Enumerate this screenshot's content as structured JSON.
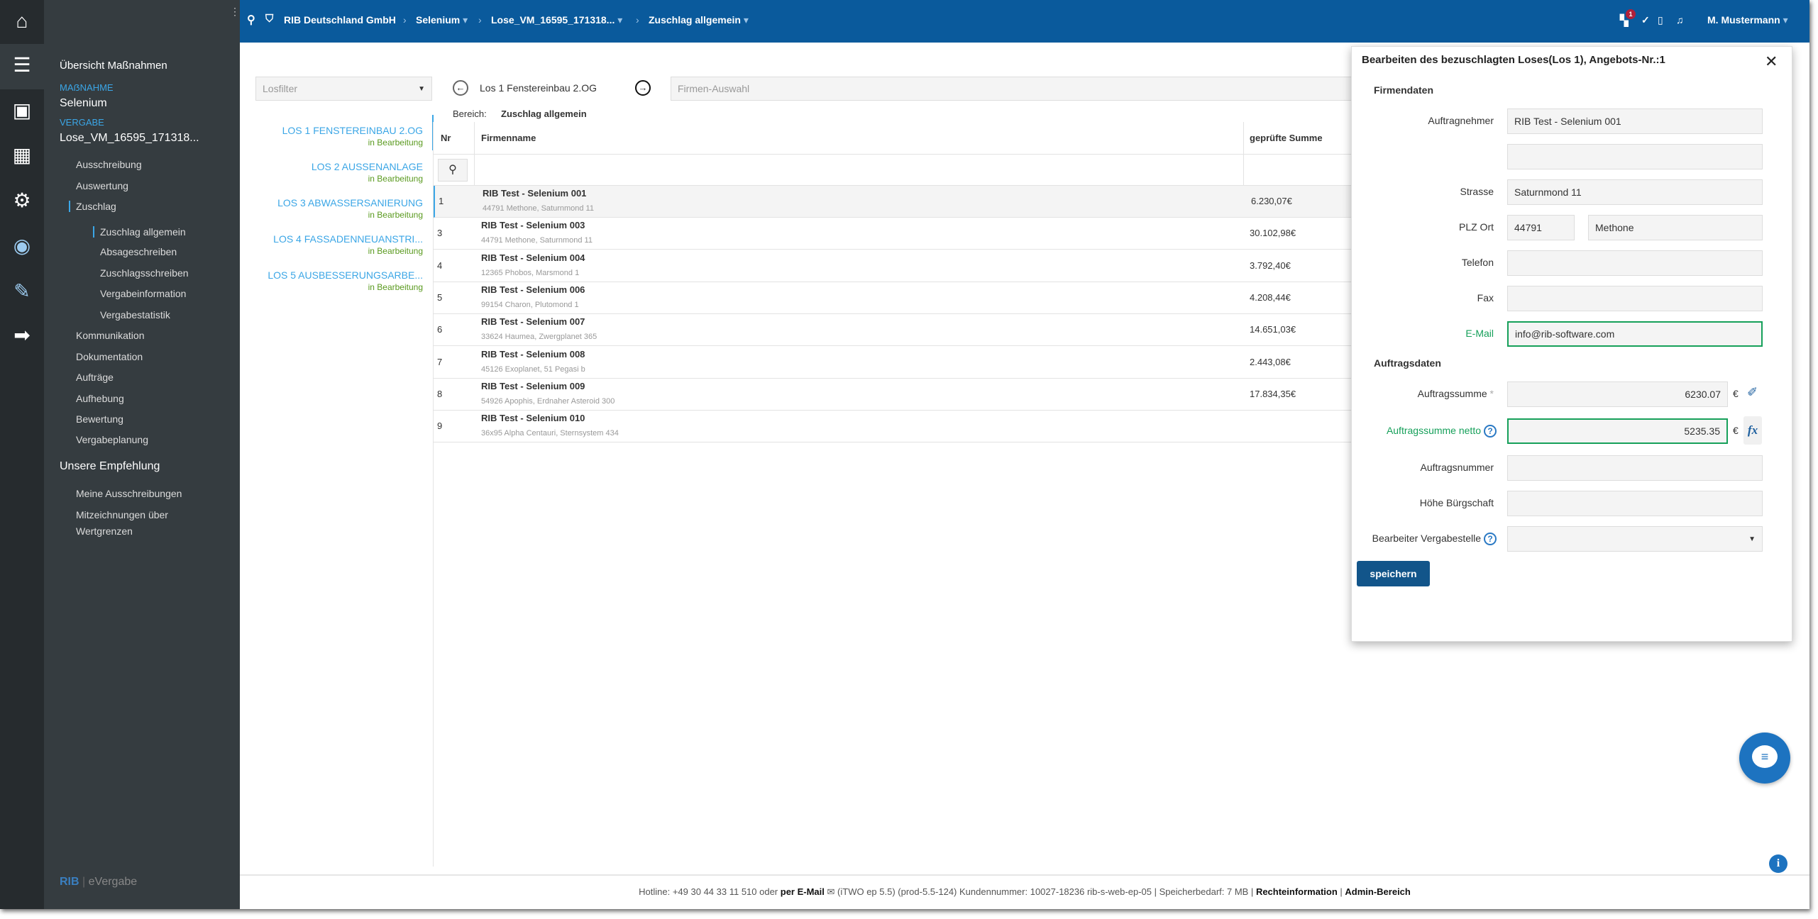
{
  "topbar": {
    "company": "RIB Deutschland GmbH",
    "crumbs": [
      "Selenium",
      "Lose_VM_16595_171318...",
      "Zuschlag allgemein"
    ],
    "notification_count": "1",
    "user": "M. Mustermann"
  },
  "sidebar": {
    "overview": "Übersicht Maßnahmen",
    "massnahme_caption": "MAẞNAHME",
    "massnahme": "Selenium",
    "vergabe_caption": "VERGABE",
    "vergabe": "Lose_VM_16595_171318...",
    "items": [
      {
        "label": "Ausschreibung",
        "level": 1
      },
      {
        "label": "Auswertung",
        "level": 1
      },
      {
        "label": "Zuschlag",
        "level": 1,
        "active": true
      },
      {
        "label": "Zuschlag allgemein",
        "level": 2,
        "active": true
      },
      {
        "label": "Absageschreiben",
        "level": 2
      },
      {
        "label": "Zuschlagsschreiben",
        "level": 2
      },
      {
        "label": "Vergabeinformation",
        "level": 2
      },
      {
        "label": "Vergabestatistik",
        "level": 2
      },
      {
        "label": "Kommunikation",
        "level": 1
      },
      {
        "label": "Dokumentation",
        "level": 1
      },
      {
        "label": "Aufträge",
        "level": 1
      },
      {
        "label": "Aufhebung",
        "level": 1
      },
      {
        "label": "Bewertung",
        "level": 1
      },
      {
        "label": "Vergabeplanung",
        "level": 1
      }
    ],
    "recommend": "Unsere Empfehlung",
    "recommend_items": [
      "Meine Ausschreibungen",
      "Mitzeichnungen über Wertgrenzen"
    ],
    "logo_rib": "RIB",
    "logo_product": "eVergabe"
  },
  "main": {
    "losfilter_placeholder": "Losfilter",
    "current_lot": "Los 1 Fenstereinbau 2.OG",
    "firmen_placeholder": "Firmen-Auswahl",
    "bereich_label": "Bereich:",
    "bereich_value": "Zuschlag allgemein",
    "lots": [
      {
        "name": "LOS 1 FENSTEREINBAU 2.OG",
        "status": "in Bearbeitung",
        "active": true
      },
      {
        "name": "LOS 2 AUSSENANLAGE",
        "status": "in Bearbeitung"
      },
      {
        "name": "LOS 3 ABWASSERSANIERUNG",
        "status": "in Bearbeitung"
      },
      {
        "name": "LOS 4 FASSADENNEUANSTRI...",
        "status": "in Bearbeitung"
      },
      {
        "name": "LOS 5 AUSBESSERUNGSARBE...",
        "status": "in Bearbeitung"
      }
    ],
    "columns": [
      "Nr",
      "Firmenname",
      "geprüfte Summe"
    ],
    "rows": [
      {
        "nr": "1",
        "name": "RIB Test - Selenium 001",
        "address": "44791 Methone, Saturnmond 11",
        "sum": "6.230,07€"
      },
      {
        "nr": "3",
        "name": "RIB Test - Selenium 003",
        "address": "44791 Methone, Saturnmond 11",
        "sum": "30.102,98€"
      },
      {
        "nr": "4",
        "name": "RIB Test - Selenium 004",
        "address": "12365 Phobos, Marsmond 1",
        "sum": "3.792,40€"
      },
      {
        "nr": "5",
        "name": "RIB Test - Selenium 006",
        "address": "99154 Charon, Plutomond 1",
        "sum": "4.208,44€"
      },
      {
        "nr": "6",
        "name": "RIB Test - Selenium 007",
        "address": "33624 Haumea, Zwergplanet 365",
        "sum": "14.651,03€"
      },
      {
        "nr": "7",
        "name": "RIB Test - Selenium 008",
        "address": "45126 Exoplanet, 51 Pegasi b",
        "sum": "2.443,08€"
      },
      {
        "nr": "8",
        "name": "RIB Test - Selenium 009",
        "address": "54926 Apophis, Erdnaher Asteroid 300",
        "sum": "17.834,35€"
      },
      {
        "nr": "9",
        "name": "RIB Test - Selenium 010",
        "address": "36x95 Alpha Centauri, Sternsystem 434",
        "sum": ""
      }
    ]
  },
  "panel": {
    "title": "Bearbeiten des bezuschlagten Loses(Los 1), Angebots-Nr.:1",
    "firmendaten": "Firmendaten",
    "auftragnehmer_label": "Auftragnehmer",
    "auftragnehmer": "RIB Test - Selenium 001",
    "auftragnehmer2": "",
    "strasse_label": "Strasse",
    "strasse": "Saturnmond 11",
    "plzort_label": "PLZ Ort",
    "plz": "44791",
    "ort": "Methone",
    "telefon_label": "Telefon",
    "telefon": "",
    "fax_label": "Fax",
    "fax": "",
    "email_label": "E-Mail",
    "email": "info@rib-software.com",
    "auftragsdaten": "Auftragsdaten",
    "summe_label": "Auftragssumme",
    "required": "*",
    "summe": "6230.07",
    "currency": "€",
    "netto_label": "Auftragssumme netto",
    "netto": "5235.35",
    "nummer_label": "Auftragsnummer",
    "nummer": "",
    "buergschaft_label": "Höhe Bürgschaft",
    "buergschaft": "",
    "bearbeiter_label": "Bearbeiter Vergabestelle",
    "bearbeiter": "",
    "save": "speichern"
  },
  "footer": {
    "hotline": "Hotline: +49 30 44 33 11 510 oder",
    "email_link": "per E-Mail",
    "info": "(iTWO ep 5.5) (prod-5.5-124)   Kundennummer: 10027-18236 rib-s-web-ep-05 | Speicherbedarf: 7 MB |",
    "rechte": "Rechteinformation",
    "admin": "Admin-Bereich"
  },
  "colors": {
    "topbar": "#0a5a9c",
    "rail": "#262b2e",
    "sidebar": "#353c40",
    "accent": "#3ba6e6",
    "valid": "#16a05a",
    "button": "#12558a"
  }
}
